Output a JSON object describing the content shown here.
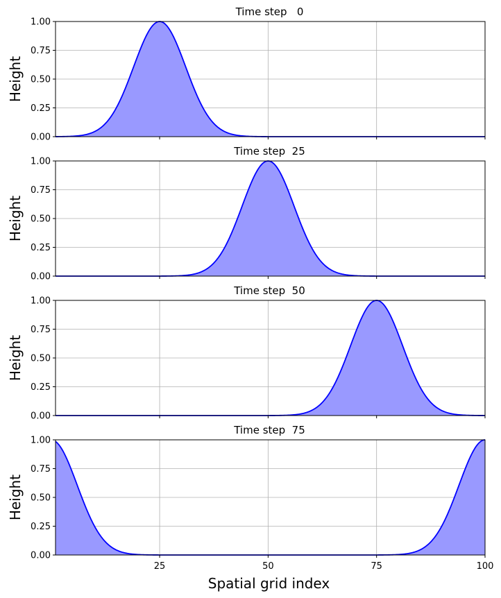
{
  "chart_data": {
    "type": "area",
    "xlabel": "Spatial grid index",
    "ylabel": "Height",
    "xlim": [
      1,
      100
    ],
    "ylim": [
      0,
      1
    ],
    "x_ticks": [
      25,
      50,
      75,
      100
    ],
    "y_ticks": [
      "0.00",
      "0.25",
      "0.50",
      "0.75",
      "1.00"
    ],
    "grid": true,
    "line_color": "#0000ff",
    "fill_color": "#9999ff",
    "grid_color": "#b0b0b0",
    "panels": [
      {
        "title": "Time step   0",
        "time_step": 0,
        "peak_center": 25,
        "sigma": 6,
        "peak_height": 1.0
      },
      {
        "title": "Time step  25",
        "time_step": 25,
        "peak_center": 50,
        "sigma": 6,
        "peak_height": 1.0
      },
      {
        "title": "Time step  50",
        "time_step": 50,
        "peak_center": 75,
        "sigma": 6,
        "peak_height": 1.0
      },
      {
        "title": "Time step  75",
        "time_step": 75,
        "peak_center": 100,
        "sigma": 6,
        "peak_height": 1.0,
        "periodic_domain": 100
      }
    ]
  }
}
